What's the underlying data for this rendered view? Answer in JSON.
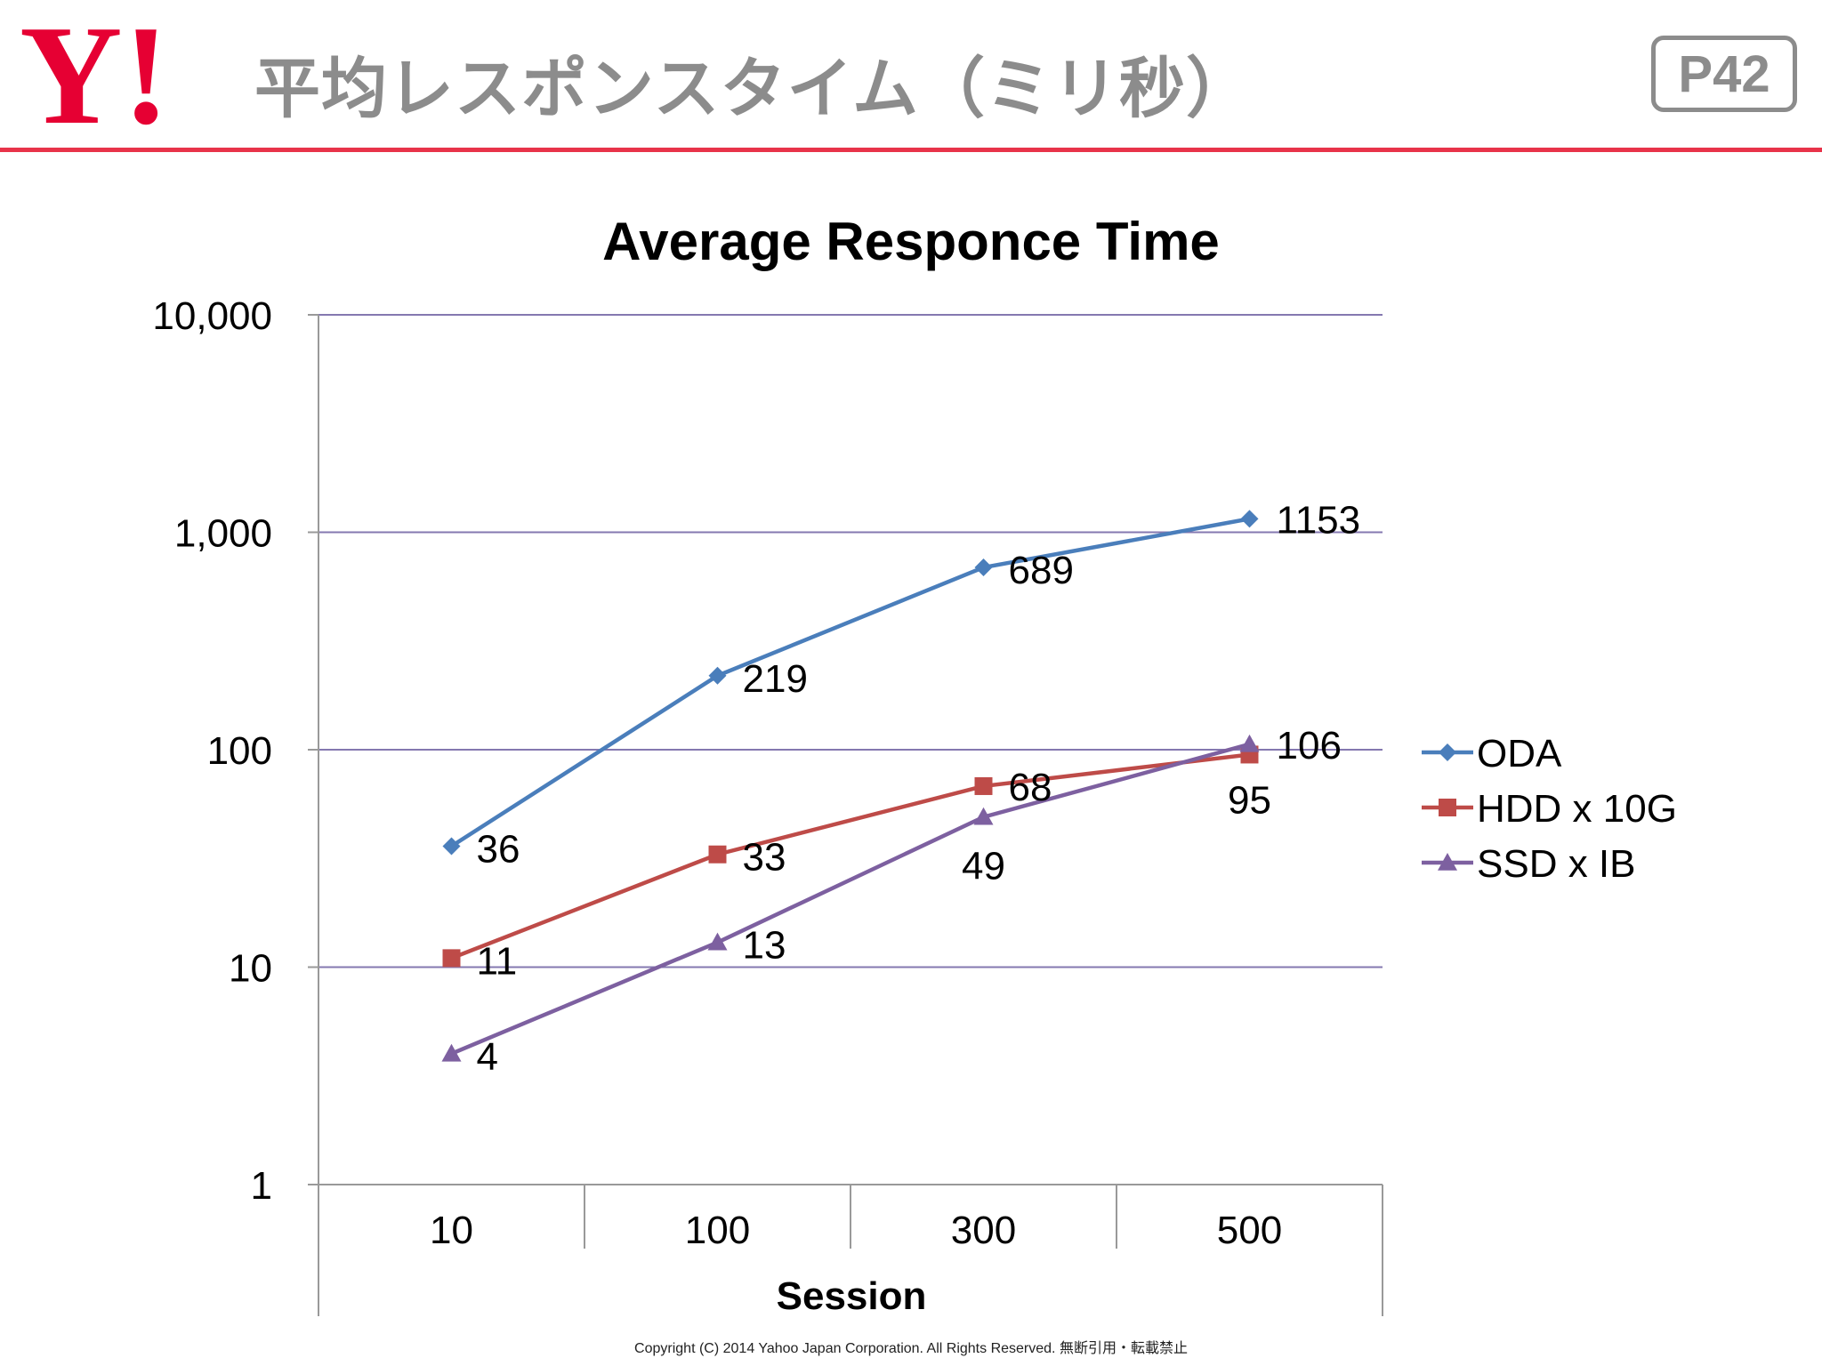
{
  "header": {
    "logo_text": "Y!",
    "title": "平均レスポンスタイム（ミリ秒）",
    "page_label": "P42"
  },
  "colors": {
    "brand_red": "#e60033",
    "rule_red": "#e8334a",
    "header_gray": "#8c8c8c",
    "grid": "#8478b0"
  },
  "chart_data": {
    "type": "line",
    "title": "Average Responce Time",
    "xlabel": "Session",
    "ylabel": "",
    "yscale": "log",
    "ylim": [
      1,
      10000
    ],
    "yticks": [
      {
        "value": 1,
        "label": "1"
      },
      {
        "value": 10,
        "label": "10"
      },
      {
        "value": 100,
        "label": "100"
      },
      {
        "value": 1000,
        "label": "1,000"
      },
      {
        "value": 10000,
        "label": "10,000"
      }
    ],
    "categories": [
      "10",
      "100",
      "300",
      "500"
    ],
    "legend_position": "right",
    "series": [
      {
        "name": "ODA",
        "color": "#4a7ebb",
        "marker": "diamond",
        "values": [
          36,
          219,
          689,
          1153
        ],
        "labels": [
          "36",
          "219",
          "689",
          "1153"
        ]
      },
      {
        "name": "HDD x 10G",
        "color": "#be4b48",
        "marker": "square",
        "values": [
          11,
          33,
          68,
          95
        ],
        "labels": [
          "11",
          "33",
          "68",
          "95"
        ]
      },
      {
        "name": "SSD x IB",
        "color": "#7d60a0",
        "marker": "triangle",
        "values": [
          4,
          13,
          49,
          106
        ],
        "labels": [
          "4",
          "13",
          "49",
          "106"
        ]
      }
    ]
  },
  "footer": {
    "copyright": "Copyright (C) 2014 Yahoo Japan Corporation. All Rights Reserved. 無断引用・転載禁止"
  }
}
